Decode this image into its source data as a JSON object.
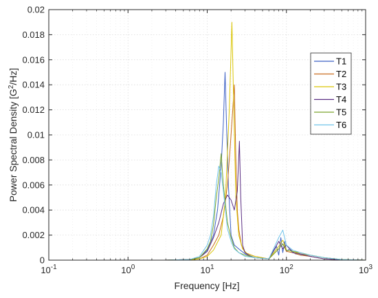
{
  "chart_data": {
    "type": "line",
    "x_scale": "log",
    "xlim": [
      0.1,
      1000
    ],
    "ylim": [
      0,
      0.02
    ],
    "xlabel": "Frequency [Hz]",
    "ylabel_main": "Power Spectral Density [G",
    "ylabel_sup": "2",
    "ylabel_tail": "/Hz]",
    "grid": true,
    "legend_position": "top-right",
    "x_ticks": [
      {
        "value": 0.1,
        "base": "10",
        "exp": "-1"
      },
      {
        "value": 1,
        "base": "10",
        "exp": "0"
      },
      {
        "value": 10,
        "base": "10",
        "exp": "1"
      },
      {
        "value": 100,
        "base": "10",
        "exp": "2"
      },
      {
        "value": 1000,
        "base": "10",
        "exp": "3"
      }
    ],
    "y_ticks": [
      {
        "value": 0,
        "label": "0"
      },
      {
        "value": 0.002,
        "label": "0.002"
      },
      {
        "value": 0.004,
        "label": "0.004"
      },
      {
        "value": 0.006,
        "label": "0.006"
      },
      {
        "value": 0.008,
        "label": "0.008"
      },
      {
        "value": 0.01,
        "label": "0.01"
      },
      {
        "value": 0.012,
        "label": "0.012"
      },
      {
        "value": 0.014,
        "label": "0.014"
      },
      {
        "value": 0.016,
        "label": "0.016"
      },
      {
        "value": 0.018,
        "label": "0.018"
      },
      {
        "value": 0.02,
        "label": "0.02"
      }
    ],
    "series": [
      {
        "name": "T1",
        "color": "#3b5fc4",
        "x": [
          3,
          6,
          8,
          10,
          12,
          13.5,
          15,
          16,
          16.8,
          17.5,
          18.5,
          20,
          22,
          25,
          30,
          40,
          60,
          75,
          80,
          85,
          90,
          95,
          100,
          110,
          130,
          160,
          200,
          300,
          500,
          1000
        ],
        "y": [
          0,
          5e-05,
          0.0002,
          0.0008,
          0.002,
          0.004,
          0.0075,
          0.011,
          0.015,
          0.011,
          0.006,
          0.002,
          0.0012,
          0.0009,
          0.0005,
          0.0002,
          0.0001,
          0.0011,
          0.0004,
          0.0018,
          0.0006,
          0.0015,
          0.0007,
          0.0009,
          0.0005,
          0.0004,
          0.0003,
          0.0001,
          3e-05,
          0
        ]
      },
      {
        "name": "T2",
        "color": "#c86a1a",
        "x": [
          3,
          6,
          8,
          10,
          12,
          14,
          16,
          18,
          19.5,
          21,
          22,
          23,
          24,
          25,
          27,
          30,
          40,
          60,
          80,
          90,
          100,
          120,
          150,
          200,
          300,
          500,
          1000
        ],
        "y": [
          0,
          5e-05,
          0.0001,
          0.0004,
          0.0012,
          0.002,
          0.0035,
          0.006,
          0.009,
          0.012,
          0.014,
          0.008,
          0.004,
          0.0025,
          0.0012,
          0.0006,
          0.0003,
          0.0001,
          0.0009,
          0.0013,
          0.0007,
          0.0006,
          0.0004,
          0.0003,
          0.0001,
          3e-05,
          0
        ]
      },
      {
        "name": "T3",
        "color": "#d9c400",
        "x": [
          3,
          6,
          8,
          10,
          12,
          15,
          17,
          19,
          20.5,
          21.5,
          23,
          25,
          28,
          32,
          40,
          60,
          80,
          90,
          100,
          120,
          150,
          200,
          300,
          500,
          1000
        ],
        "y": [
          0,
          3e-05,
          0.0001,
          0.0003,
          0.0008,
          0.002,
          0.005,
          0.012,
          0.019,
          0.013,
          0.005,
          0.002,
          0.0009,
          0.0005,
          0.0003,
          0.0001,
          0.0011,
          0.0016,
          0.0008,
          0.0007,
          0.0005,
          0.0004,
          0.0002,
          5e-05,
          0
        ]
      },
      {
        "name": "T4",
        "color": "#5a2d82",
        "x": [
          3,
          6,
          8,
          10,
          12,
          14,
          16,
          18,
          20,
          22,
          24,
          25.5,
          26.5,
          28,
          30,
          35,
          40,
          60,
          80,
          90,
          100,
          120,
          150,
          200,
          300,
          500,
          1000
        ],
        "y": [
          0,
          5e-05,
          0.0002,
          0.0007,
          0.0018,
          0.003,
          0.0045,
          0.0052,
          0.0048,
          0.004,
          0.0055,
          0.0095,
          0.005,
          0.0012,
          0.0006,
          0.0003,
          0.0002,
          0.0001,
          0.0015,
          0.0009,
          0.0012,
          0.0006,
          0.0005,
          0.0003,
          0.0001,
          3e-05,
          0
        ]
      },
      {
        "name": "T5",
        "color": "#7aa52b",
        "x": [
          3,
          6,
          8,
          10,
          11,
          12,
          13,
          14,
          15,
          16,
          17,
          18,
          20,
          22,
          25,
          30,
          40,
          60,
          80,
          90,
          100,
          120,
          150,
          200,
          300,
          500,
          1000
        ],
        "y": [
          0,
          5e-05,
          0.0002,
          0.0009,
          0.0015,
          0.0028,
          0.005,
          0.0065,
          0.0085,
          0.006,
          0.0045,
          0.003,
          0.0018,
          0.001,
          0.0006,
          0.0004,
          0.0002,
          0.0001,
          0.0009,
          0.0013,
          0.0008,
          0.0007,
          0.0006,
          0.0004,
          0.0002,
          5e-05,
          0
        ]
      },
      {
        "name": "T6",
        "color": "#6fc3ea",
        "x": [
          3,
          6,
          8,
          10,
          11,
          12,
          13,
          14,
          15,
          16,
          17,
          18,
          20,
          22,
          25,
          30,
          40,
          60,
          80,
          90,
          100,
          120,
          150,
          200,
          300,
          500,
          1000
        ],
        "y": [
          0,
          5e-05,
          0.0003,
          0.0012,
          0.002,
          0.0035,
          0.006,
          0.0075,
          0.007,
          0.0055,
          0.004,
          0.0025,
          0.0015,
          0.0009,
          0.0006,
          0.0003,
          0.0002,
          0.0001,
          0.0018,
          0.0024,
          0.0012,
          0.0008,
          0.0006,
          0.0004,
          0.0002,
          5e-05,
          0
        ]
      }
    ]
  }
}
